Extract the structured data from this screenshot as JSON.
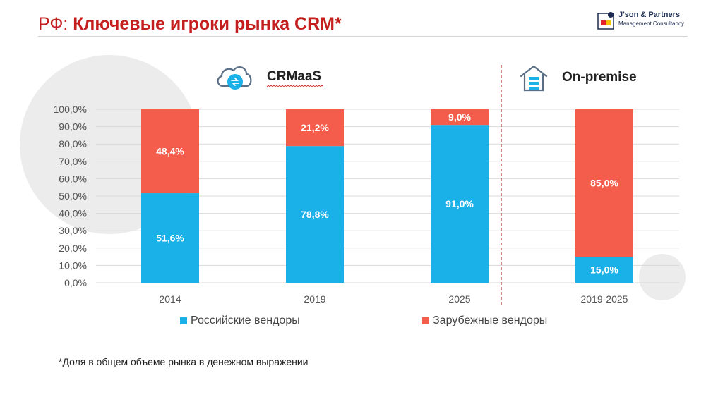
{
  "header": {
    "title_prefix": "РФ: ",
    "title_main": "Ключевые игроки рынка CRM*"
  },
  "logo": {
    "name": "J'son & Partners",
    "subtitle": "Management Consultancy"
  },
  "sections": {
    "crmaas": "CRMaaS",
    "onpremise": "On-premise"
  },
  "colors": {
    "russian": "#1ab0e8",
    "foreign": "#f45d4c",
    "title": "#c41e1e",
    "divider": "#b03a3a"
  },
  "chart_data": {
    "type": "bar",
    "stacked": true,
    "categories": [
      "2014",
      "2019",
      "2025",
      "2019-2025"
    ],
    "series": [
      {
        "name": "Российские вендоры",
        "values": [
          51.6,
          78.8,
          91.0,
          15.0
        ],
        "labels": [
          "51,6%",
          "78,8%",
          "91,0%",
          "15,0%"
        ]
      },
      {
        "name": "Зарубежные вендоры",
        "values": [
          48.4,
          21.2,
          9.0,
          85.0
        ],
        "labels": [
          "48,4%",
          "21,2%",
          "9,0%",
          "85,0%"
        ]
      }
    ],
    "yticks": [
      "0,0%",
      "10,0%",
      "20,0%",
      "30,0%",
      "40,0%",
      "50,0%",
      "60,0%",
      "70,0%",
      "80,0%",
      "90,0%",
      "100,0%"
    ],
    "ylim": [
      0,
      100
    ],
    "grid": true,
    "legend_position": "bottom",
    "groups": [
      {
        "label": "CRMaaS",
        "categories": [
          "2014",
          "2019",
          "2025"
        ]
      },
      {
        "label": "On-premise",
        "categories": [
          "2019-2025"
        ]
      }
    ]
  },
  "footnote": "*Доля в общем объеме рынка в денежном выражении"
}
